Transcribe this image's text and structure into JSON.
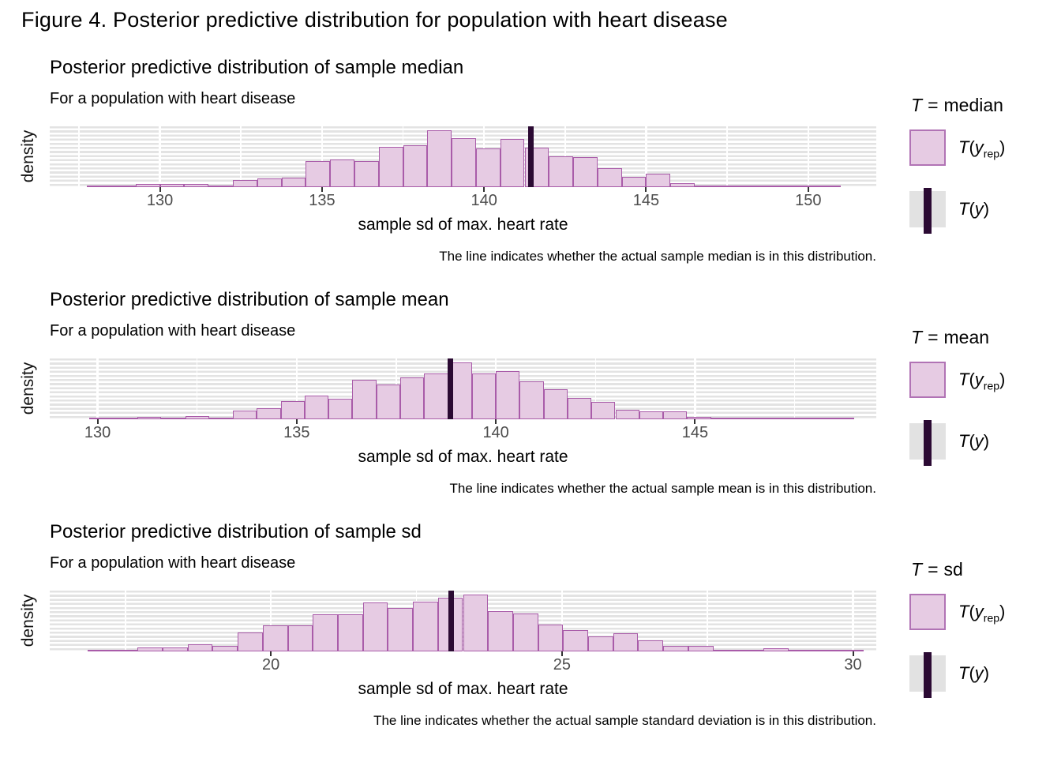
{
  "figure_title": "Figure 4. Posterior predictive distribution for population with heart disease",
  "colors": {
    "bar_fill": "#E6CBE3",
    "bar_border": "#A95CA9",
    "observed_line": "#2B0A33",
    "panel_stripe": "#E3E3E3",
    "legend_key_bg": "#E2E2E2",
    "legend_key_border": "#B173B5",
    "tick_text": "#4D4D4D"
  },
  "legend_labels": {
    "t": "T",
    "eq": "=",
    "yrep": {
      "t": "T",
      "open": "(",
      "y": "y",
      "sub": "rep",
      "close": ")"
    },
    "ty": {
      "t": "T",
      "open": "(",
      "y": "y",
      "close": ")"
    }
  },
  "charts": [
    {
      "legend_value": "median",
      "chart_data": {
        "type": "bar",
        "subtype": "histogram",
        "title": "Posterior predictive distribution of sample median",
        "subtitle": "For a population with heart disease",
        "xlabel": "sample sd of max. heart rate",
        "ylabel": "density",
        "caption": "The line indicates whether the actual sample median is in this distribution.",
        "legend": {
          "title": "T = median",
          "entries": [
            "T(y_rep)",
            "T(y)"
          ],
          "position": "right"
        },
        "grid": "horizontal-stripes-and-vertical-white-lines",
        "x_range": [
          126.6,
          152.1
        ],
        "x_ticks": [
          130,
          135,
          140,
          145,
          150
        ],
        "bin_start": 127.75,
        "bin_width": 0.75,
        "heights": [
          0.015,
          0.02,
          0.05,
          0.06,
          0.06,
          0.03,
          0.12,
          0.15,
          0.16,
          0.46,
          0.49,
          0.46,
          0.71,
          0.73,
          1.0,
          0.86,
          0.68,
          0.85,
          0.69,
          0.54,
          0.53,
          0.34,
          0.18,
          0.23,
          0.07,
          0.03,
          0.02,
          0.015,
          0.015,
          0.01,
          0.025
        ],
        "line_x": 141.45
      }
    },
    {
      "legend_value": "mean",
      "chart_data": {
        "type": "bar",
        "subtype": "histogram",
        "title": "Posterior predictive distribution of sample mean",
        "subtitle": "For a population with heart disease",
        "xlabel": "sample sd of max. heart rate",
        "ylabel": "density",
        "caption": "The line indicates whether the actual sample mean is in this distribution.",
        "legend": {
          "title": "T = mean",
          "entries": [
            "T(y_rep)",
            "T(y)"
          ],
          "position": "right"
        },
        "grid": "horizontal-stripes-and-vertical-white-lines",
        "x_range": [
          128.8,
          149.55
        ],
        "x_ticks": [
          130,
          135,
          140,
          145
        ],
        "bin_start": 129.8,
        "bin_width": 0.6,
        "heights": [
          0.015,
          0.015,
          0.04,
          0.02,
          0.06,
          0.03,
          0.15,
          0.2,
          0.32,
          0.41,
          0.36,
          0.69,
          0.61,
          0.73,
          0.8,
          1.0,
          0.8,
          0.85,
          0.66,
          0.53,
          0.37,
          0.31,
          0.17,
          0.14,
          0.14,
          0.035,
          0.025,
          0.02,
          0.02,
          0.015,
          0.015,
          0.01
        ],
        "line_x": 138.85
      }
    },
    {
      "legend_value": "sd",
      "chart_data": {
        "type": "bar",
        "subtype": "histogram",
        "title": "Posterior predictive distribution of sample sd",
        "subtitle": "For a population with heart disease",
        "xlabel": "sample sd of max. heart rate",
        "ylabel": "density",
        "caption": "The line indicates whether the actual sample standard deviation is in this distribution.",
        "legend": {
          "title": "T = sd",
          "entries": [
            "T(y_rep)",
            "T(y)"
          ],
          "position": "right"
        },
        "grid": "horizontal-stripes-and-vertical-white-lines",
        "x_range": [
          16.2,
          30.4
        ],
        "x_ticks": [
          20,
          25,
          30
        ],
        "bin_start": 16.85,
        "bin_width": 0.43,
        "heights": [
          0.015,
          0.01,
          0.07,
          0.07,
          0.13,
          0.1,
          0.33,
          0.46,
          0.46,
          0.65,
          0.65,
          0.86,
          0.77,
          0.88,
          0.95,
          1.0,
          0.71,
          0.67,
          0.47,
          0.37,
          0.26,
          0.32,
          0.19,
          0.1,
          0.1,
          0.03,
          0.01,
          0.06,
          0.015,
          0.01,
          0.01
        ],
        "line_x": 23.1
      }
    }
  ]
}
